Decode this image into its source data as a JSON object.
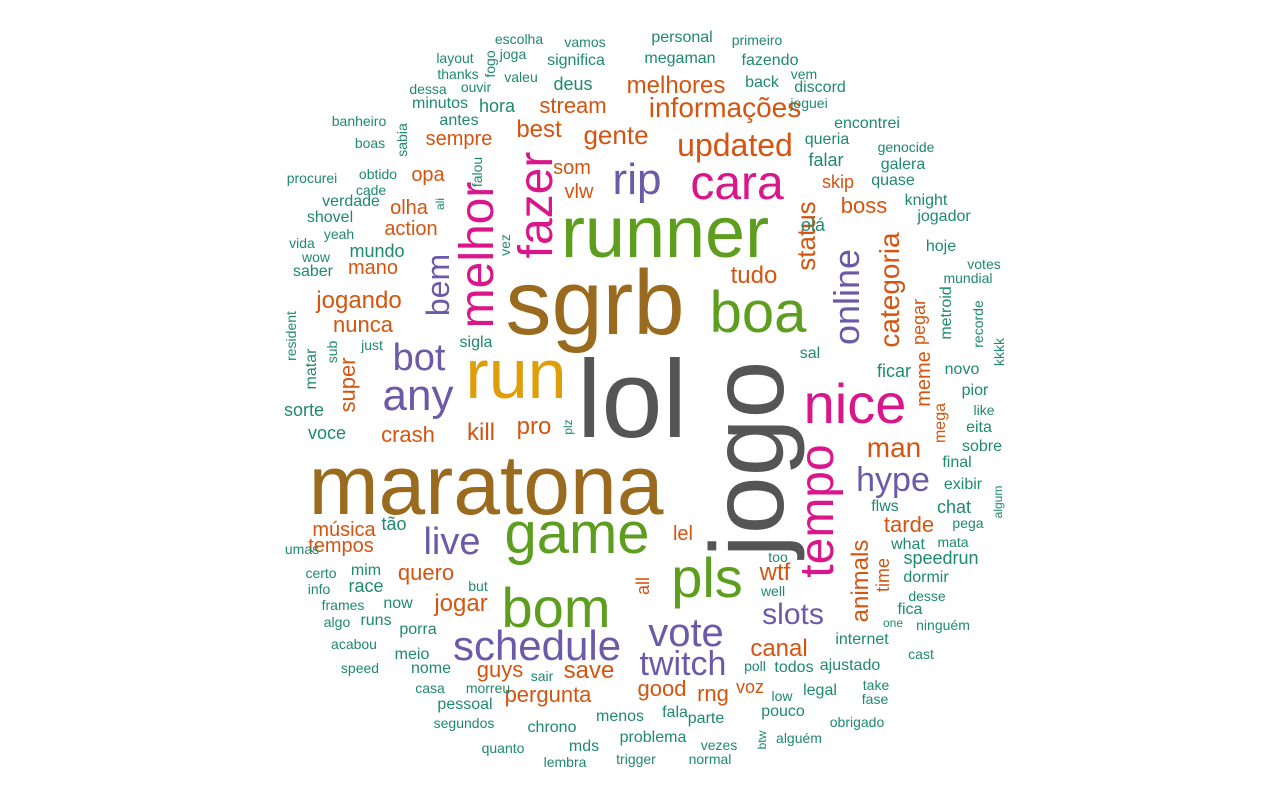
{
  "palette": {
    "c0": "#555555",
    "c1": "#9A6A1E",
    "c2": "#5E9E1F",
    "c3": "#D9168A",
    "c4": "#DE9E08",
    "c5": "#6A5AA8",
    "c6": "#D45410",
    "c7": "#1E8A6E"
  },
  "words": [
    {
      "text": "lol",
      "color": "c0"
    },
    {
      "text": "jogo",
      "color": "c0"
    },
    {
      "text": "maratona",
      "color": "c1"
    },
    {
      "text": "sgrb",
      "color": "c1"
    },
    {
      "text": "runner",
      "color": "c2"
    },
    {
      "text": "run",
      "color": "c4"
    },
    {
      "text": "game",
      "color": "c2"
    },
    {
      "text": "bom",
      "color": "c2"
    },
    {
      "text": "pls",
      "color": "c2"
    },
    {
      "text": "boa",
      "color": "c2"
    },
    {
      "text": "nice",
      "color": "c3"
    },
    {
      "text": "tempo",
      "color": "c3"
    },
    {
      "text": "cara",
      "color": "c3"
    },
    {
      "text": "melhor",
      "color": "c3"
    },
    {
      "text": "fazer",
      "color": "c3"
    },
    {
      "text": "rip",
      "color": "c5"
    },
    {
      "text": "schedule",
      "color": "c5"
    },
    {
      "text": "vote",
      "color": "c5"
    },
    {
      "text": "twitch",
      "color": "c5"
    },
    {
      "text": "any",
      "color": "c5"
    },
    {
      "text": "bot",
      "color": "c5"
    },
    {
      "text": "live",
      "color": "c5"
    },
    {
      "text": "online",
      "color": "c5"
    },
    {
      "text": "hype",
      "color": "c5"
    },
    {
      "text": "slots",
      "color": "c5"
    },
    {
      "text": "bem",
      "color": "c5"
    },
    {
      "text": "informações",
      "color": "c6"
    },
    {
      "text": "updated",
      "color": "c6"
    },
    {
      "text": "melhores",
      "color": "c6"
    },
    {
      "text": "gente",
      "color": "c6"
    },
    {
      "text": "stream",
      "color": "c6"
    },
    {
      "text": "best",
      "color": "c6"
    },
    {
      "text": "sempre",
      "color": "c6"
    },
    {
      "text": "som",
      "color": "c6"
    },
    {
      "text": "vlw",
      "color": "c6"
    },
    {
      "text": "opa",
      "color": "c6"
    },
    {
      "text": "olha",
      "color": "c6"
    },
    {
      "text": "action",
      "color": "c6"
    },
    {
      "text": "mano",
      "color": "c6"
    },
    {
      "text": "jogando",
      "color": "c6"
    },
    {
      "text": "nunca",
      "color": "c6"
    },
    {
      "text": "super",
      "color": "c6"
    },
    {
      "text": "crash",
      "color": "c6"
    },
    {
      "text": "kill",
      "color": "c6"
    },
    {
      "text": "pro",
      "color": "c6"
    },
    {
      "text": "status",
      "color": "c6"
    },
    {
      "text": "tudo",
      "color": "c6"
    },
    {
      "text": "categoria",
      "color": "c6"
    },
    {
      "text": "boss",
      "color": "c6"
    },
    {
      "text": "skip",
      "color": "c6"
    },
    {
      "text": "man",
      "color": "c6"
    },
    {
      "text": "meme",
      "color": "c6"
    },
    {
      "text": "pegar",
      "color": "c6"
    },
    {
      "text": "tarde",
      "color": "c6"
    },
    {
      "text": "animals",
      "color": "c6"
    },
    {
      "text": "time",
      "color": "c6"
    },
    {
      "text": "música",
      "color": "c6"
    },
    {
      "text": "tempos",
      "color": "c6"
    },
    {
      "text": "quero",
      "color": "c6"
    },
    {
      "text": "jogar",
      "color": "c6"
    },
    {
      "text": "lel",
      "color": "c6"
    },
    {
      "text": "wtf",
      "color": "c6"
    },
    {
      "text": "canal",
      "color": "c6"
    },
    {
      "text": "save",
      "color": "c6"
    },
    {
      "text": "guys",
      "color": "c6"
    },
    {
      "text": "pergunta",
      "color": "c6"
    },
    {
      "text": "good",
      "color": "c6"
    },
    {
      "text": "rng",
      "color": "c6"
    },
    {
      "text": "voz",
      "color": "c6"
    },
    {
      "text": "all",
      "color": "c6"
    },
    {
      "text": "mega",
      "color": "c6"
    },
    {
      "text": "escolha",
      "color": "c7"
    },
    {
      "text": "vamos",
      "color": "c7"
    },
    {
      "text": "personal",
      "color": "c7"
    },
    {
      "text": "primeiro",
      "color": "c7"
    },
    {
      "text": "layout",
      "color": "c7"
    },
    {
      "text": "joga",
      "color": "c7"
    },
    {
      "text": "fogo",
      "color": "c7"
    },
    {
      "text": "significa",
      "color": "c7"
    },
    {
      "text": "megaman",
      "color": "c7"
    },
    {
      "text": "thanks",
      "color": "c7"
    },
    {
      "text": "ouvir",
      "color": "c7"
    },
    {
      "text": "valeu",
      "color": "c7"
    },
    {
      "text": "fazendo",
      "color": "c7"
    },
    {
      "text": "dessa",
      "color": "c7"
    },
    {
      "text": "deus",
      "color": "c7"
    },
    {
      "text": "back",
      "color": "c7"
    },
    {
      "text": "vem",
      "color": "c7"
    },
    {
      "text": "discord",
      "color": "c7"
    },
    {
      "text": "minutos",
      "color": "c7"
    },
    {
      "text": "hora",
      "color": "c7"
    },
    {
      "text": "joguei",
      "color": "c7"
    },
    {
      "text": "banheiro",
      "color": "c7"
    },
    {
      "text": "antes",
      "color": "c7"
    },
    {
      "text": "encontrei",
      "color": "c7"
    },
    {
      "text": "sabia",
      "color": "c7"
    },
    {
      "text": "boas",
      "color": "c7"
    },
    {
      "text": "queria",
      "color": "c7"
    },
    {
      "text": "genocide",
      "color": "c7"
    },
    {
      "text": "falar",
      "color": "c7"
    },
    {
      "text": "galera",
      "color": "c7"
    },
    {
      "text": "obtido",
      "color": "c7"
    },
    {
      "text": "procurei",
      "color": "c7"
    },
    {
      "text": "cade",
      "color": "c7"
    },
    {
      "text": "falou",
      "color": "c7"
    },
    {
      "text": "quase",
      "color": "c7"
    },
    {
      "text": "verdade",
      "color": "c7"
    },
    {
      "text": "ali",
      "color": "c7"
    },
    {
      "text": "knight",
      "color": "c7"
    },
    {
      "text": "shovel",
      "color": "c7"
    },
    {
      "text": "jogador",
      "color": "c7"
    },
    {
      "text": "yeah",
      "color": "c7"
    },
    {
      "text": "olá",
      "color": "c7"
    },
    {
      "text": "vida",
      "color": "c7"
    },
    {
      "text": "vez",
      "color": "c7"
    },
    {
      "text": "hoje",
      "color": "c7"
    },
    {
      "text": "wow",
      "color": "c7"
    },
    {
      "text": "mundo",
      "color": "c7"
    },
    {
      "text": "votes",
      "color": "c7"
    },
    {
      "text": "saber",
      "color": "c7"
    },
    {
      "text": "mundial",
      "color": "c7"
    },
    {
      "text": "metroid",
      "color": "c7"
    },
    {
      "text": "recorde",
      "color": "c7"
    },
    {
      "text": "resident",
      "color": "c7"
    },
    {
      "text": "sub",
      "color": "c7"
    },
    {
      "text": "just",
      "color": "c7"
    },
    {
      "text": "sigla",
      "color": "c7"
    },
    {
      "text": "matar",
      "color": "c7"
    },
    {
      "text": "sal",
      "color": "c7"
    },
    {
      "text": "kkkk",
      "color": "c7"
    },
    {
      "text": "ficar",
      "color": "c7"
    },
    {
      "text": "novo",
      "color": "c7"
    },
    {
      "text": "pior",
      "color": "c7"
    },
    {
      "text": "sorte",
      "color": "c7"
    },
    {
      "text": "like",
      "color": "c7"
    },
    {
      "text": "plz",
      "color": "c7"
    },
    {
      "text": "eita",
      "color": "c7"
    },
    {
      "text": "voce",
      "color": "c7"
    },
    {
      "text": "sobre",
      "color": "c7"
    },
    {
      "text": "final",
      "color": "c7"
    },
    {
      "text": "exibir",
      "color": "c7"
    },
    {
      "text": "algum",
      "color": "c7"
    },
    {
      "text": "flws",
      "color": "c7"
    },
    {
      "text": "chat",
      "color": "c7"
    },
    {
      "text": "pega",
      "color": "c7"
    },
    {
      "text": "tão",
      "color": "c7"
    },
    {
      "text": "what",
      "color": "c7"
    },
    {
      "text": "mata",
      "color": "c7"
    },
    {
      "text": "umas",
      "color": "c7"
    },
    {
      "text": "too",
      "color": "c7"
    },
    {
      "text": "speedrun",
      "color": "c7"
    },
    {
      "text": "certo",
      "color": "c7"
    },
    {
      "text": "mim",
      "color": "c7"
    },
    {
      "text": "dormir",
      "color": "c7"
    },
    {
      "text": "info",
      "color": "c7"
    },
    {
      "text": "race",
      "color": "c7"
    },
    {
      "text": "but",
      "color": "c7"
    },
    {
      "text": "well",
      "color": "c7"
    },
    {
      "text": "desse",
      "color": "c7"
    },
    {
      "text": "frames",
      "color": "c7"
    },
    {
      "text": "now",
      "color": "c7"
    },
    {
      "text": "fica",
      "color": "c7"
    },
    {
      "text": "algo",
      "color": "c7"
    },
    {
      "text": "runs",
      "color": "c7"
    },
    {
      "text": "porra",
      "color": "c7"
    },
    {
      "text": "one",
      "color": "c7"
    },
    {
      "text": "ninguém",
      "color": "c7"
    },
    {
      "text": "acabou",
      "color": "c7"
    },
    {
      "text": "internet",
      "color": "c7"
    },
    {
      "text": "meio",
      "color": "c7"
    },
    {
      "text": "cast",
      "color": "c7"
    },
    {
      "text": "speed",
      "color": "c7"
    },
    {
      "text": "nome",
      "color": "c7"
    },
    {
      "text": "sair",
      "color": "c7"
    },
    {
      "text": "poll",
      "color": "c7"
    },
    {
      "text": "todos",
      "color": "c7"
    },
    {
      "text": "ajustado",
      "color": "c7"
    },
    {
      "text": "casa",
      "color": "c7"
    },
    {
      "text": "morreu",
      "color": "c7"
    },
    {
      "text": "take",
      "color": "c7"
    },
    {
      "text": "legal",
      "color": "c7"
    },
    {
      "text": "low",
      "color": "c7"
    },
    {
      "text": "fase",
      "color": "c7"
    },
    {
      "text": "pessoal",
      "color": "c7"
    },
    {
      "text": "fala",
      "color": "c7"
    },
    {
      "text": "segundos",
      "color": "c7"
    },
    {
      "text": "menos",
      "color": "c7"
    },
    {
      "text": "parte",
      "color": "c7"
    },
    {
      "text": "pouco",
      "color": "c7"
    },
    {
      "text": "obrigado",
      "color": "c7"
    },
    {
      "text": "chrono",
      "color": "c7"
    },
    {
      "text": "quanto",
      "color": "c7"
    },
    {
      "text": "mds",
      "color": "c7"
    },
    {
      "text": "problema",
      "color": "c7"
    },
    {
      "text": "vezes",
      "color": "c7"
    },
    {
      "text": "btw",
      "color": "c7"
    },
    {
      "text": "alguém",
      "color": "c7"
    },
    {
      "text": "lembra",
      "color": "c7"
    },
    {
      "text": "trigger",
      "color": "c7"
    },
    {
      "text": "normal",
      "color": "c7"
    }
  ]
}
